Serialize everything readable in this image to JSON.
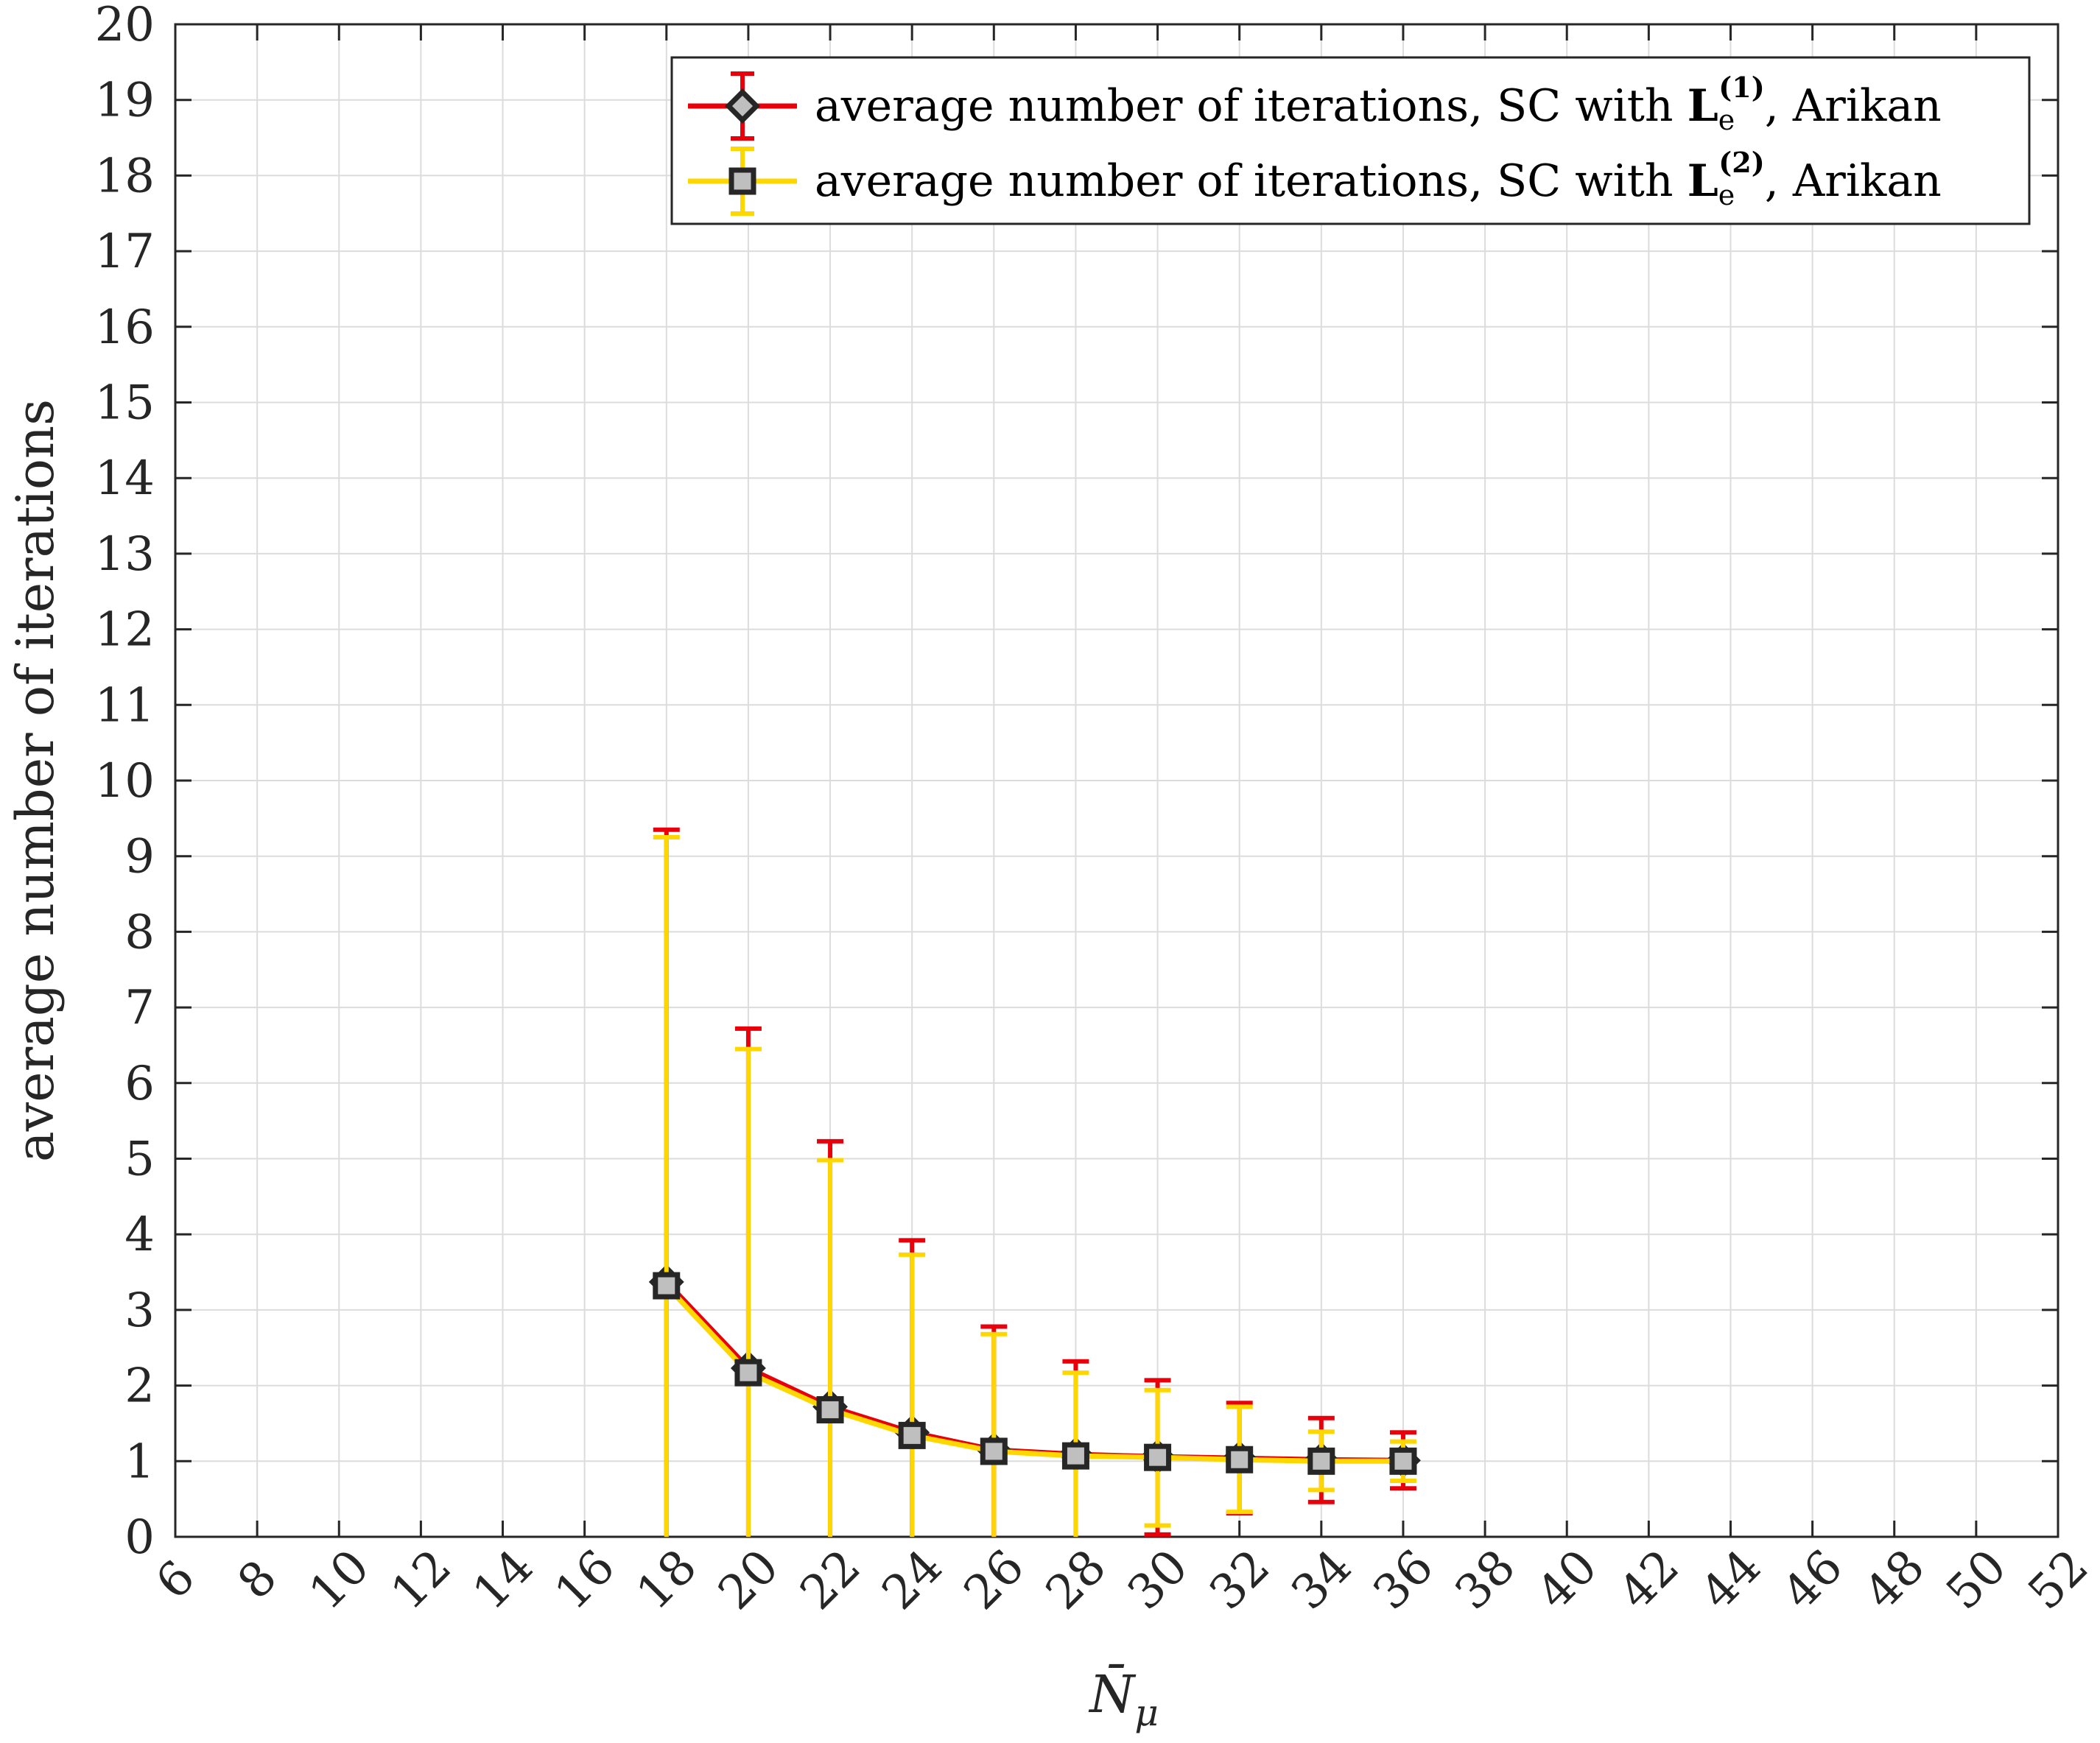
{
  "chart_data": {
    "type": "line",
    "xlabel": "N̄",
    "xlabel_sub": "μ",
    "ylabel": "average number of iterations",
    "xlim": [
      6,
      52
    ],
    "ylim": [
      0,
      20
    ],
    "x_ticks": [
      6,
      8,
      10,
      12,
      14,
      16,
      18,
      20,
      22,
      24,
      26,
      28,
      30,
      32,
      34,
      36,
      38,
      40,
      42,
      44,
      46,
      48,
      50,
      52
    ],
    "y_ticks": [
      0,
      1,
      2,
      3,
      4,
      5,
      6,
      7,
      8,
      9,
      10,
      11,
      12,
      13,
      14,
      15,
      16,
      17,
      18,
      19,
      20
    ],
    "grid": true,
    "legend_position": "top-right",
    "x": [
      18,
      20,
      22,
      24,
      26,
      28,
      30,
      32,
      34,
      36
    ],
    "series": [
      {
        "name": "average number of iterations, SC with L_e^(1), Arikan",
        "legend_prefix": "average number of iterations, SC with ",
        "legend_sym": "L",
        "legend_sub": "e",
        "legend_sup": "(1)",
        "legend_suffix": ", Arikan",
        "color": "#e8000b",
        "marker": "diamond",
        "marker_face": "#bfbfbf",
        "marker_edge": "#262626",
        "values": [
          3.37,
          2.23,
          1.72,
          1.38,
          1.15,
          1.09,
          1.06,
          1.04,
          1.02,
          1.01
        ],
        "err_upper": [
          9.35,
          6.72,
          5.23,
          3.92,
          2.78,
          2.32,
          2.07,
          1.77,
          1.57,
          1.38
        ],
        "err_lower": [
          0,
          0,
          0,
          0,
          0,
          0,
          0.03,
          0.31,
          0.46,
          0.64
        ]
      },
      {
        "name": "average number of iterations, SC with L_e^(2), Arikan",
        "legend_prefix": "average number of iterations, SC with ",
        "legend_sym": "L",
        "legend_sub": "e",
        "legend_sup": "(2)",
        "legend_suffix": ", Arikan",
        "color": "#ffd700",
        "marker": "square",
        "marker_face": "#bfbfbf",
        "marker_edge": "#262626",
        "values": [
          3.32,
          2.17,
          1.68,
          1.34,
          1.13,
          1.07,
          1.05,
          1.02,
          1.0,
          1.0
        ],
        "err_upper": [
          9.25,
          6.45,
          4.98,
          3.73,
          2.68,
          2.17,
          1.94,
          1.72,
          1.39,
          1.26
        ],
        "err_lower": [
          0,
          0,
          0,
          0,
          0,
          0,
          0.15,
          0.33,
          0.62,
          0.74
        ]
      }
    ]
  }
}
